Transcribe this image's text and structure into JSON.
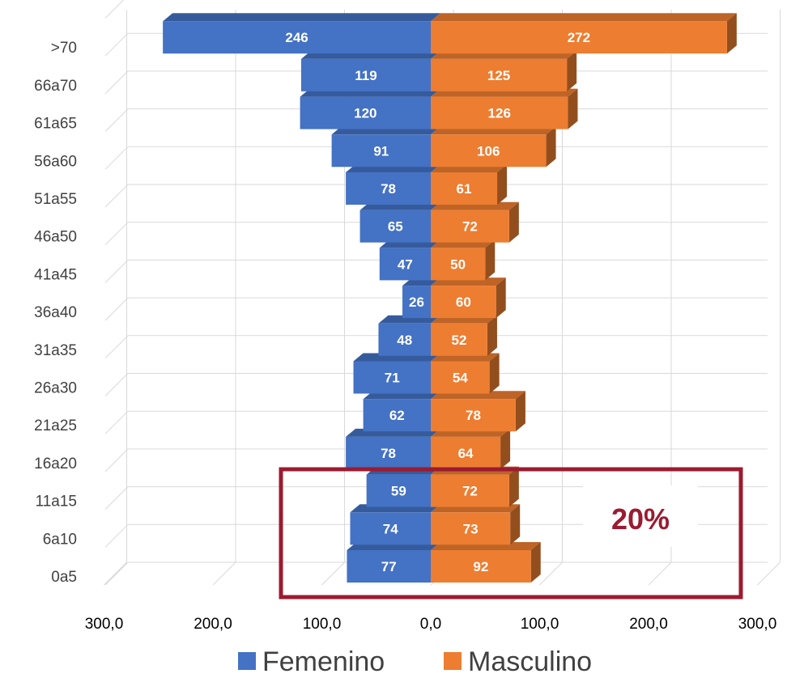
{
  "chart_data": {
    "type": "bar",
    "orientation": "horizontal",
    "style": "3d-population-pyramid",
    "categories": [
      "0a5",
      "6a10",
      "11a15",
      "16a20",
      "21a25",
      "26a30",
      "31a35",
      "36a40",
      "41a45",
      "46a50",
      "51a55",
      "56a60",
      "61a65",
      "66a70",
      ">70"
    ],
    "series": [
      {
        "name": "Femenino",
        "values": [
          77,
          74,
          59,
          78,
          62,
          71,
          48,
          26,
          47,
          65,
          78,
          91,
          120,
          119,
          246
        ],
        "color": "#4472c4",
        "side": "left"
      },
      {
        "name": "Masculino",
        "values": [
          92,
          73,
          72,
          64,
          78,
          54,
          52,
          60,
          50,
          72,
          61,
          106,
          126,
          125,
          272
        ],
        "color": "#ed7d31",
        "side": "right"
      }
    ],
    "xlim": [
      -300,
      300
    ],
    "x_ticks": [
      "300,0",
      "200,0",
      "100,0",
      "0,0",
      "100,0",
      "200,0",
      "300,0"
    ],
    "grid": true,
    "legend": "bottom",
    "annotation": {
      "text": "20%",
      "color": "#9b1b30",
      "covers_categories": [
        "0a5",
        "6a10",
        "11a15"
      ]
    },
    "title": "",
    "xlabel": "",
    "ylabel": ""
  }
}
